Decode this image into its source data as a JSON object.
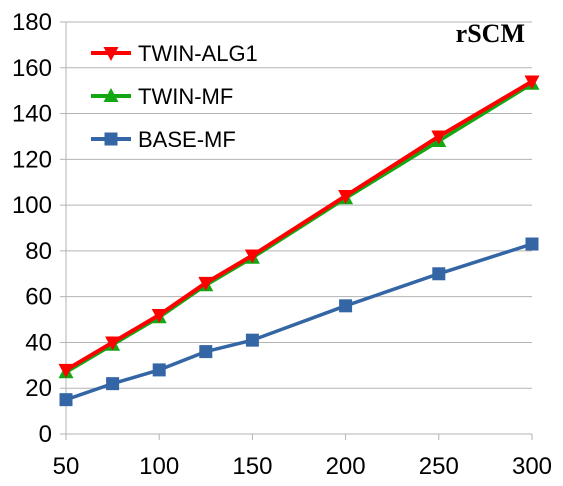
{
  "chart_data": {
    "type": "line",
    "title": "rSCM",
    "xlabel": "",
    "ylabel": "",
    "x": [
      50,
      75,
      100,
      125,
      150,
      200,
      250,
      300
    ],
    "xticks": [
      50,
      100,
      150,
      200,
      250,
      300
    ],
    "yticks": [
      0,
      20,
      40,
      60,
      80,
      100,
      120,
      140,
      160,
      180
    ],
    "xlim": [
      50,
      300
    ],
    "ylim": [
      0,
      180
    ],
    "grid": "horizontal",
    "legend_position": "top-left",
    "series": [
      {
        "name": "TWIN-ALG1",
        "color": "#ff0000",
        "marker": "triangle-down",
        "values": [
          28,
          40,
          52,
          66,
          78,
          104,
          130,
          154
        ]
      },
      {
        "name": "TWIN-MF",
        "color": "#13a813",
        "marker": "triangle-up",
        "values": [
          27,
          39,
          51,
          65,
          77,
          103,
          128,
          153
        ]
      },
      {
        "name": "BASE-MF",
        "color": "#3465a4",
        "marker": "square",
        "values": [
          15,
          22,
          28,
          36,
          41,
          56,
          70,
          83
        ]
      }
    ]
  }
}
